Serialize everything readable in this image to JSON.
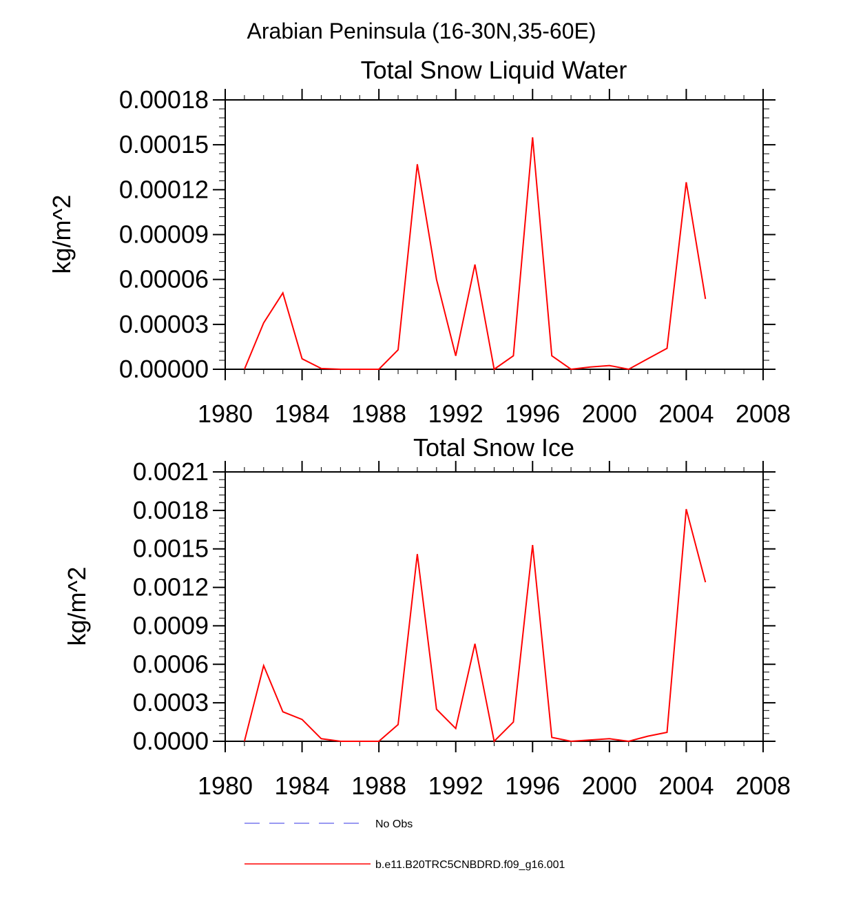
{
  "figure_title": "Arabian Peninsula (16-30N,35-60E)",
  "chart_data": [
    {
      "type": "line",
      "title": "Total Snow Liquid Water",
      "xlabel": "",
      "ylabel": "kg/m^2",
      "xlim": [
        1980,
        2008
      ],
      "ylim": [
        0,
        0.00018
      ],
      "x_ticks": [
        1980,
        1984,
        1988,
        1992,
        1996,
        2000,
        2004,
        2008
      ],
      "x_tick_labels": [
        "1980",
        "1984",
        "1988",
        "1992",
        "1996",
        "2000",
        "2004",
        "2008"
      ],
      "y_ticks": [
        0,
        3e-05,
        6e-05,
        9e-05,
        0.00012,
        0.00015,
        0.00018
      ],
      "y_tick_labels": [
        "0.00000",
        "0.00003",
        "0.00006",
        "0.00009",
        "0.00012",
        "0.00015",
        "0.00018"
      ],
      "x": [
        1981,
        1982,
        1983,
        1984,
        1985,
        1986,
        1987,
        1988,
        1989,
        1990,
        1991,
        1992,
        1993,
        1994,
        1995,
        1996,
        1997,
        1998,
        1999,
        2000,
        2001,
        2002,
        2003,
        2004,
        2005
      ],
      "series": [
        {
          "name": "b.e11.B20TRC5CNBDRD.f09_g16.001",
          "color": "#ff0000",
          "values": [
            0.0,
            3.1e-05,
            5.1e-05,
            7e-06,
            5e-07,
            0.0,
            0.0,
            0.0,
            1.3e-05,
            0.000137,
            6e-05,
            9e-06,
            7e-05,
            0.0,
            9e-06,
            0.000155,
            9e-06,
            0.0,
            1.5e-06,
            2.5e-06,
            0.0,
            7e-06,
            1.4e-05,
            0.000125,
            4.7e-05
          ]
        }
      ]
    },
    {
      "type": "line",
      "title": "Total Snow Ice",
      "xlabel": "",
      "ylabel": "kg/m^2",
      "xlim": [
        1980,
        2008
      ],
      "ylim": [
        0,
        0.0021
      ],
      "x_ticks": [
        1980,
        1984,
        1988,
        1992,
        1996,
        2000,
        2004,
        2008
      ],
      "x_tick_labels": [
        "1980",
        "1984",
        "1988",
        "1992",
        "1996",
        "2000",
        "2004",
        "2008"
      ],
      "y_ticks": [
        0,
        0.0003,
        0.0006,
        0.0009,
        0.0012,
        0.0015,
        0.0018,
        0.0021
      ],
      "y_tick_labels": [
        "0.0000",
        "0.0003",
        "0.0006",
        "0.0009",
        "0.0012",
        "0.0015",
        "0.0018",
        "0.0021"
      ],
      "x": [
        1981,
        1982,
        1983,
        1984,
        1985,
        1986,
        1987,
        1988,
        1989,
        1990,
        1991,
        1992,
        1993,
        1994,
        1995,
        1996,
        1997,
        1998,
        1999,
        2000,
        2001,
        2002,
        2003,
        2004,
        2005
      ],
      "series": [
        {
          "name": "b.e11.B20TRC5CNBDRD.f09_g16.001",
          "color": "#ff0000",
          "values": [
            0.0,
            0.00059,
            0.00023,
            0.00017,
            2e-05,
            0.0,
            0.0,
            0.0,
            0.00013,
            0.00146,
            0.00025,
            0.0001,
            0.00076,
            0.0,
            0.00015,
            0.00153,
            3e-05,
            0.0,
            1e-05,
            2e-05,
            0.0,
            4e-05,
            7e-05,
            0.00181,
            0.00124
          ]
        }
      ]
    }
  ],
  "legend": [
    {
      "label": "No Obs",
      "color": "#7777ee",
      "style": "dashed"
    },
    {
      "label": "b.e11.B20TRC5CNBDRD.f09_g16.001",
      "color": "#ff0000",
      "style": "solid"
    }
  ]
}
